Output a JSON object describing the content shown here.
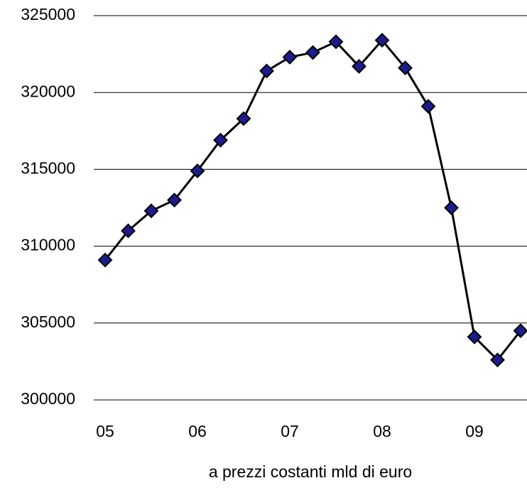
{
  "chart_data": {
    "type": "line",
    "x_label": "a prezzi costanti mld di euro",
    "categories": [
      "05",
      null,
      null,
      null,
      "06",
      null,
      null,
      null,
      "07",
      null,
      null,
      null,
      "08",
      null,
      null,
      null,
      "09",
      null,
      null
    ],
    "series": [
      {
        "color": "#000000",
        "marker_color": "#1c1c8f",
        "values": [
          309100,
          311000,
          312300,
          313000,
          314900,
          316900,
          318300,
          321400,
          322300,
          322600,
          323300,
          321700,
          323400,
          321600,
          319100,
          312500,
          304100,
          302600,
          304500
        ]
      }
    ],
    "ylim": [
      300000,
      325000
    ],
    "yticks": [
      300000,
      305000,
      310000,
      315000,
      320000,
      325000
    ],
    "grid": true
  }
}
